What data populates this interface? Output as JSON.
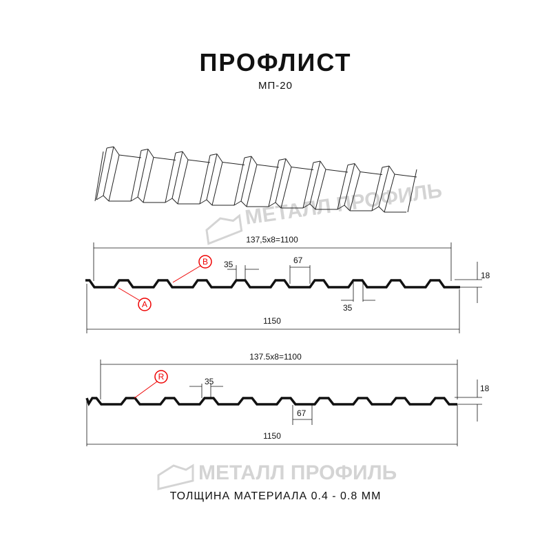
{
  "header": {
    "title": "ПРОФЛИСТ",
    "subtitle": "МП-20"
  },
  "watermark": {
    "text": "МЕТАЛЛ ПРОФИЛЬ"
  },
  "profile_1": {
    "pitch_label": "137,5x8=1100",
    "total_label": "1150",
    "top_width": "35",
    "bottom_width_label": "35",
    "rib_gap": "67",
    "height": "18",
    "marker_a": "A",
    "marker_b": "B"
  },
  "profile_2": {
    "pitch_label": "137.5x8=1100",
    "total_label": "1150",
    "top_width": "35",
    "rib_gap": "67",
    "height": "18",
    "marker_r": "R"
  },
  "footer": {
    "thickness": "ТОЛЩИНА МАТЕРИАЛА 0.4 - 0.8 ММ"
  },
  "colors": {
    "line": "#111111",
    "marker": "#e00000",
    "watermark": "#d4d4d4"
  }
}
